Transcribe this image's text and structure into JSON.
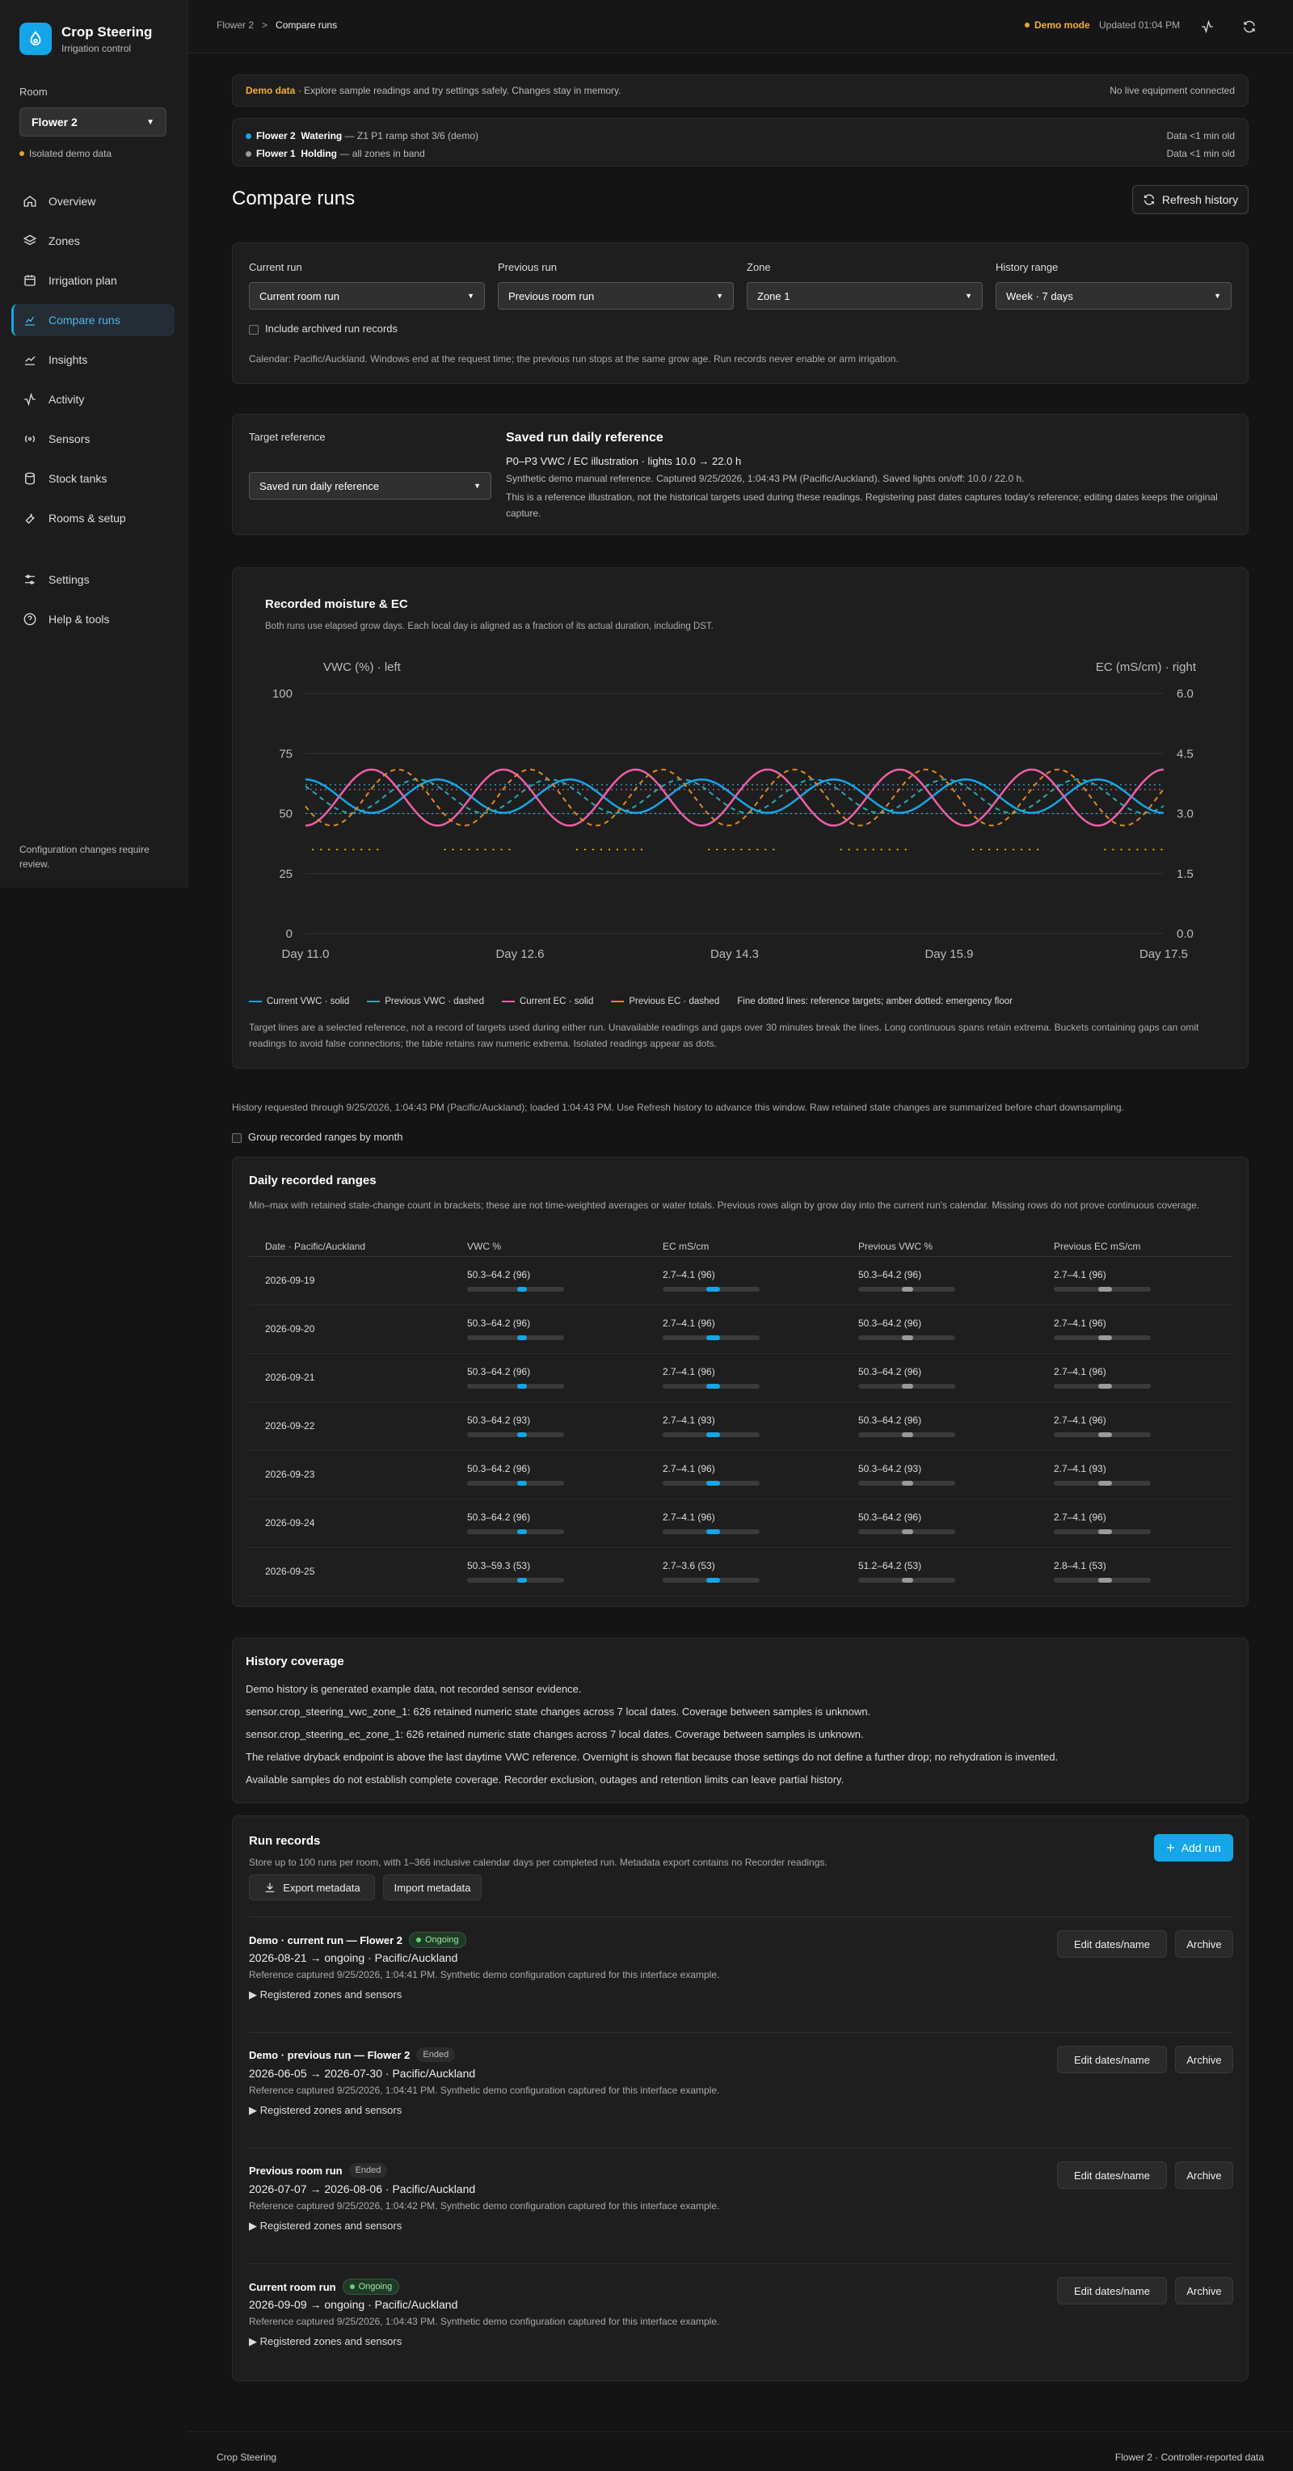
{
  "app": {
    "title": "Crop Steering",
    "subtitle": "Irrigation control"
  },
  "sidebar": {
    "room_label": "Room",
    "room_value": "Flower 2",
    "isolated": "Isolated demo data",
    "items": [
      {
        "label": "Overview",
        "icon": "home-icon"
      },
      {
        "label": "Zones",
        "icon": "layers-icon"
      },
      {
        "label": "Irrigation plan",
        "icon": "calendar-icon"
      },
      {
        "label": "Compare runs",
        "icon": "chart-icon",
        "active": true
      },
      {
        "label": "Insights",
        "icon": "trend-icon"
      },
      {
        "label": "Activity",
        "icon": "pulse-icon"
      },
      {
        "label": "Sensors",
        "icon": "radio-icon"
      },
      {
        "label": "Stock tanks",
        "icon": "database-icon"
      },
      {
        "label": "Rooms & setup",
        "icon": "wrench-icon"
      },
      {
        "label": "Settings",
        "icon": "sliders-icon"
      },
      {
        "label": "Help & tools",
        "icon": "help-icon"
      }
    ],
    "footer": "Configuration changes require review."
  },
  "topbar": {
    "crumb_parent": "Flower 2",
    "crumb_sep": ">",
    "crumb_current": "Compare runs",
    "demo_mode": "Demo mode",
    "updated": "Updated 01:04 PM"
  },
  "demo_banner": {
    "label": "Demo data",
    "text": " · Explore sample readings and try settings safely. Changes stay in memory.",
    "right": "No live equipment connected"
  },
  "status": [
    {
      "room": "Flower 2",
      "state": "Watering",
      "detail": "— Z1 P1 ramp shot 3/6 (demo)",
      "age": "Data <1 min old",
      "color": "#14a6e8"
    },
    {
      "room": "Flower 1",
      "state": "Holding",
      "detail": "— all zones in band",
      "age": "Data <1 min old",
      "color": "#9a9a9a"
    }
  ],
  "page": {
    "title": "Compare runs",
    "refresh": "Refresh history"
  },
  "filters": {
    "current_label": "Current run",
    "current_value": "Current room run",
    "previous_label": "Previous run",
    "previous_value": "Previous room run",
    "zone_label": "Zone",
    "zone_value": "Zone 1",
    "range_label": "History range",
    "range_value": "Week · 7 days",
    "archived": "Include archived run records",
    "note": "Calendar: Pacific/Auckland. Windows end at the request time; the previous run stops at the same grow age. Run records never enable or arm irrigation."
  },
  "target": {
    "label": "Target reference",
    "select_value": "Saved run daily reference",
    "title": "Saved run daily reference",
    "line1": "P0–P3 VWC / EC illustration · lights 10.0 → 22.0 h",
    "line2": "Synthetic demo manual reference. Captured 9/25/2026, 1:04:43 PM (Pacific/Auckland). Saved lights on/off: 10.0 / 22.0 h.",
    "line3": "This is a reference illustration, not the historical targets used during these readings. Registering past dates captures today's reference; editing dates keeps the original capture."
  },
  "chart": {
    "heading": "Recorded moisture & EC",
    "subheading": "Both runs use elapsed grow days. Each local day is aligned as a fraction of its actual duration, including DST.",
    "legend": [
      {
        "label": "Current VWC · solid",
        "color": "#14a6e8"
      },
      {
        "label": "Previous VWC · dashed",
        "color": "#2aa8b8"
      },
      {
        "label": "Current EC · solid",
        "color": "#ec5fa8"
      },
      {
        "label": "Previous EC · dashed",
        "color": "#e08a22"
      }
    ],
    "legend_note": "Fine dotted lines: reference targets; amber dotted: emergency floor",
    "caption": "Target lines are a selected reference, not a record of targets used during either run. Unavailable readings and gaps over 30 minutes break the lines. Long continuous spans retain extrema. Buckets containing gaps can omit readings to avoid false connections; the table retains raw numeric extrema. Isolated readings appear as dots."
  },
  "chart_data": {
    "type": "line",
    "ylabel": "VWC (%) · left",
    "y2label": "EC (mS/cm) · right",
    "ylim": [
      0,
      100
    ],
    "y2lim": [
      0,
      6
    ],
    "yticks": [
      "100",
      "75",
      "50",
      "25",
      "0"
    ],
    "y2ticks": [
      "6.0",
      "4.5",
      "3.0",
      "1.5",
      "0.0"
    ],
    "xticks": [
      "Day 11.0",
      "Day 12.6",
      "Day 14.3",
      "Day 15.9",
      "Day 17.5"
    ],
    "xlim": [
      11.0,
      17.5
    ],
    "series": [
      {
        "name": "Current VWC",
        "axis": "left",
        "min": 50.3,
        "max": 64.2,
        "phase": 0
      },
      {
        "name": "Previous VWC",
        "axis": "left",
        "min": 50.3,
        "max": 64.2,
        "phase": 0.15
      },
      {
        "name": "Current EC",
        "axis": "right",
        "min": 2.7,
        "max": 4.1,
        "phase": 0.5
      },
      {
        "name": "Previous EC",
        "axis": "right",
        "min": 2.7,
        "max": 4.1,
        "phase": 0.3
      }
    ],
    "reference_vwc": [
      62,
      50
    ],
    "reference_ec": [
      3.6
    ],
    "emergency_floor_vwc": 35
  },
  "history_note": "History requested through 9/25/2026, 1:04:43 PM (Pacific/Auckland); loaded 1:04:43 PM. Use Refresh history to advance this window. Raw retained state changes are summarized before chart downsampling.",
  "group_by_month": "Group recorded ranges by month",
  "ranges": {
    "title": "Daily recorded ranges",
    "desc": "Min–max with retained state-change count in brackets; these are not time-weighted averages or water totals. Previous rows align by grow day into the current run's calendar. Missing rows do not prove continuous coverage.",
    "headers": [
      "Date · Pacific/Auckland",
      "VWC %",
      "EC mS/cm",
      "Previous VWC %",
      "Previous EC mS/cm"
    ],
    "rows": [
      {
        "date": "2026-09-19",
        "vwc": "50.3–64.2 (96)",
        "ec": "2.7–4.1 (96)",
        "pvwc": "50.3–64.2 (96)",
        "pec": "2.7–4.1 (96)"
      },
      {
        "date": "2026-09-20",
        "vwc": "50.3–64.2 (96)",
        "ec": "2.7–4.1 (96)",
        "pvwc": "50.3–64.2 (96)",
        "pec": "2.7–4.1 (96)"
      },
      {
        "date": "2026-09-21",
        "vwc": "50.3–64.2 (96)",
        "ec": "2.7–4.1 (96)",
        "pvwc": "50.3–64.2 (96)",
        "pec": "2.7–4.1 (96)"
      },
      {
        "date": "2026-09-22",
        "vwc": "50.3–64.2 (93)",
        "ec": "2.7–4.1 (93)",
        "pvwc": "50.3–64.2 (96)",
        "pec": "2.7–4.1 (96)"
      },
      {
        "date": "2026-09-23",
        "vwc": "50.3–64.2 (96)",
        "ec": "2.7–4.1 (96)",
        "pvwc": "50.3–64.2 (93)",
        "pec": "2.7–4.1 (93)"
      },
      {
        "date": "2026-09-24",
        "vwc": "50.3–64.2 (96)",
        "ec": "2.7–4.1 (96)",
        "pvwc": "50.3–64.2 (96)",
        "pec": "2.7–4.1 (96)"
      },
      {
        "date": "2026-09-25",
        "vwc": "50.3–59.3 (53)",
        "ec": "2.7–3.6 (53)",
        "pvwc": "51.2–64.2 (53)",
        "pec": "2.8–4.1 (53)"
      }
    ]
  },
  "coverage": {
    "title": "History coverage",
    "lines": [
      "Demo history is generated example data, not recorded sensor evidence.",
      "sensor.crop_steering_vwc_zone_1: 626 retained numeric state changes across 7 local dates. Coverage between samples is unknown.",
      "sensor.crop_steering_ec_zone_1: 626 retained numeric state changes across 7 local dates. Coverage between samples is unknown.",
      "The relative dryback endpoint is above the last daytime VWC reference. Overnight is shown flat because those settings do not define a further drop; no rehydration is invented.",
      "Available samples do not establish complete coverage. Recorder exclusion, outages and retention limits can leave partial history."
    ]
  },
  "records": {
    "title": "Run records",
    "desc": "Store up to 100 runs per room, with 1–366 inclusive calendar days per completed run. Metadata export contains no Recorder readings.",
    "add": "Add run",
    "export": "Export metadata",
    "import": "Import metadata",
    "edit": "Edit dates/name",
    "archive": "Archive",
    "zones": "▶ Registered zones and sensors",
    "items": [
      {
        "name": "Demo · current run — Flower 2",
        "status": "Ongoing",
        "dates": "2026-08-21 → ongoing · Pacific/Auckland",
        "ref": "Reference captured 9/25/2026, 1:04:41 PM. Synthetic demo configuration captured for this interface example."
      },
      {
        "name": "Demo · previous run — Flower 2",
        "status": "Ended",
        "dates": "2026-06-05 → 2026-07-30 · Pacific/Auckland",
        "ref": "Reference captured 9/25/2026, 1:04:41 PM. Synthetic demo configuration captured for this interface example."
      },
      {
        "name": "Previous room run",
        "status": "Ended",
        "dates": "2026-07-07 → 2026-08-06 · Pacific/Auckland",
        "ref": "Reference captured 9/25/2026, 1:04:42 PM. Synthetic demo configuration captured for this interface example."
      },
      {
        "name": "Current room run",
        "status": "Ongoing",
        "dates": "2026-09-09 → ongoing · Pacific/Auckland",
        "ref": "Reference captured 9/25/2026, 1:04:43 PM. Synthetic demo configuration captured for this interface example."
      }
    ]
  },
  "footer": {
    "left": "Crop Steering",
    "right": "Flower 2 · Controller-reported data"
  }
}
